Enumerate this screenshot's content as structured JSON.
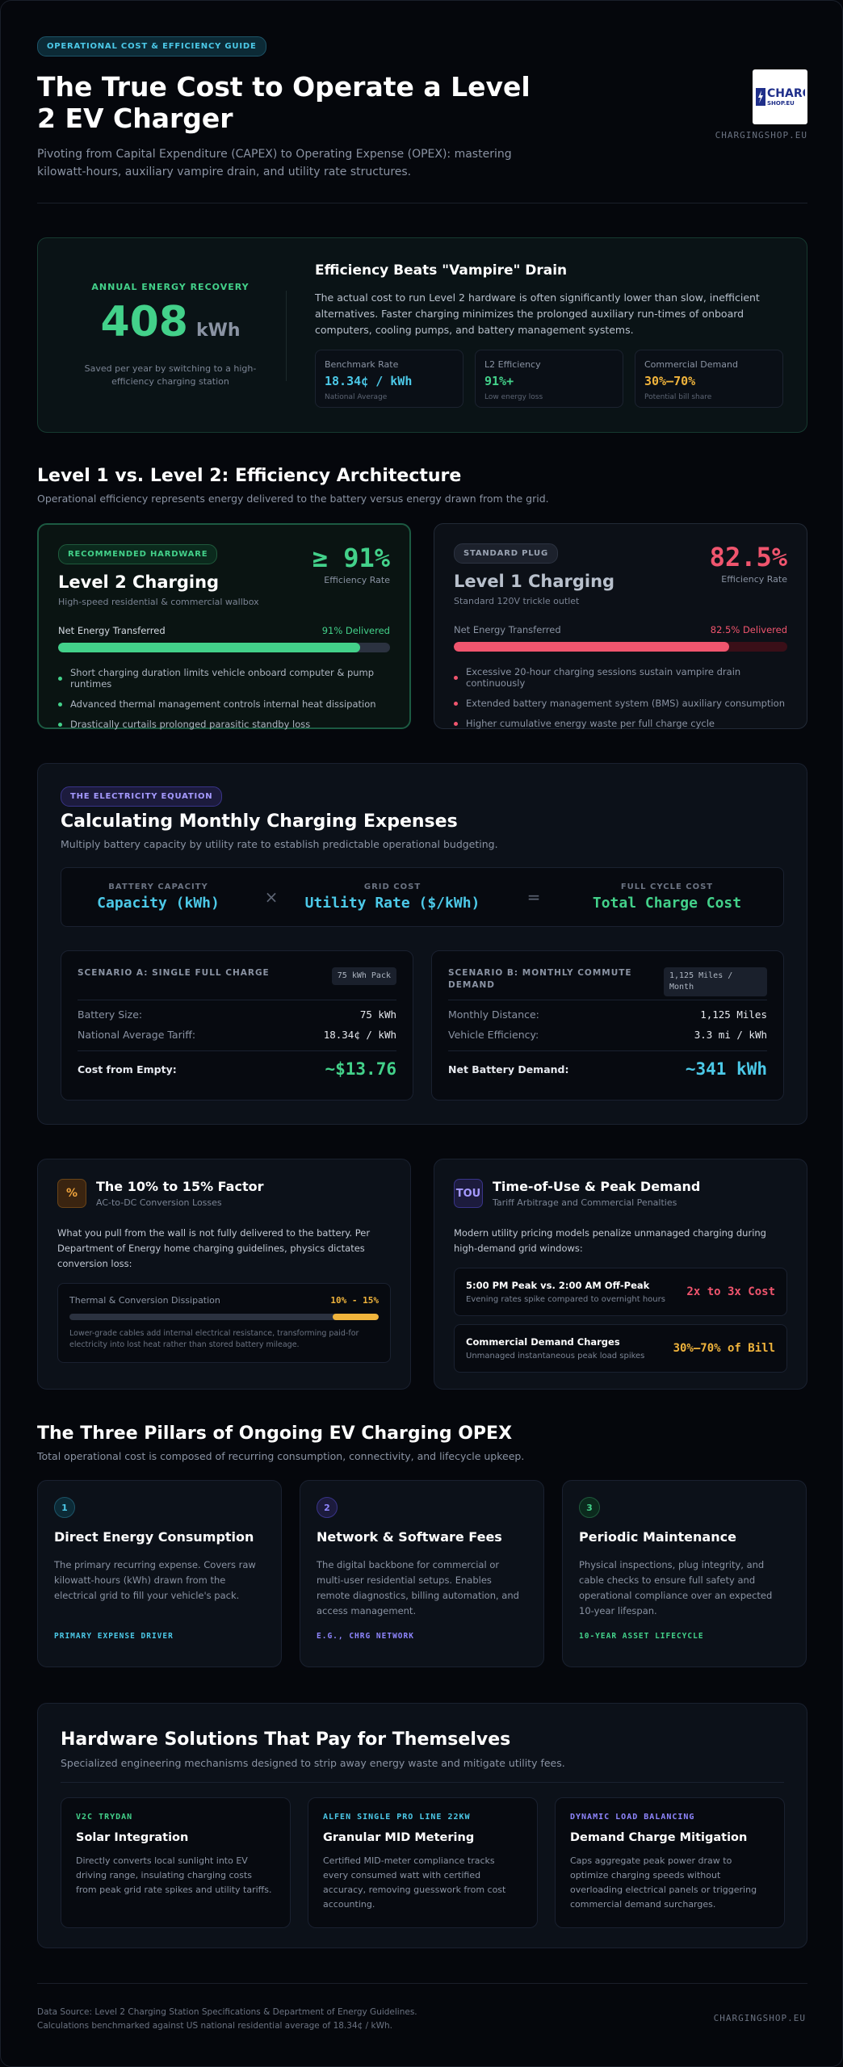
{
  "header": {
    "badge": "OPERATIONAL COST & EFFICIENCY GUIDE",
    "title": "The True Cost to Operate a Level 2 EV Charger",
    "subtitle": "Pivoting from Capital Expenditure (CAPEX) to Operating Expense (OPEX): mastering kilowatt-hours, auxiliary vampire drain, and utility rate structures.",
    "logo_label": "CHARG",
    "logo_sub": "SHOP.EU",
    "brand": "CHARGINGSHOP.EU"
  },
  "hero": {
    "label": "ANNUAL ENERGY RECOVERY",
    "value": "408",
    "unit": "kWh",
    "caption": "Saved per year by switching to a high-efficiency charging station",
    "title": "Efficiency Beats \"Vampire\" Drain",
    "text": "The actual cost to run Level 2 hardware is often significantly lower than slow, inefficient alternatives. Faster charging minimizes the prolonged auxiliary run-times of onboard computers, cooling pumps, and battery management systems.",
    "stats": [
      {
        "label": "Benchmark Rate",
        "value": "18.34¢ / kWh",
        "note": "National Average",
        "color": "#4cc9e8"
      },
      {
        "label": "L2 Efficiency",
        "value": "91%+",
        "note": "Low energy loss",
        "color": "#43d18a"
      },
      {
        "label": "Commercial Demand",
        "value": "30%–70%",
        "note": "Potential bill share",
        "color": "#f0b43c"
      }
    ]
  },
  "levels": {
    "title": "Level 1 vs. Level 2: Efficiency Architecture",
    "subtitle": "Operational efficiency represents energy delivered to the battery versus energy drawn from the grid.",
    "l2": {
      "badge": "RECOMMENDED HARDWARE",
      "name": "Level 2 Charging",
      "desc": "High-speed residential & commercial wallbox",
      "big": "≥ 91%",
      "big_caption": "Efficiency Rate",
      "row_label": "Net Energy Transferred",
      "row_value": "91% Delivered",
      "fill": 0.91,
      "bullets": [
        "Short charging duration limits vehicle onboard computer & pump runtimes",
        "Advanced thermal management controls internal heat dissipation",
        "Drastically curtails prolonged parasitic standby loss"
      ]
    },
    "l1": {
      "badge": "STANDARD PLUG",
      "name": "Level 1 Charging",
      "desc": "Standard 120V trickle outlet",
      "big": "82.5%",
      "big_caption": "Efficiency Rate",
      "row_label": "Net Energy Transferred",
      "row_value": "82.5% Delivered",
      "fill": 0.825,
      "bullets": [
        "Excessive 20-hour charging sessions sustain vampire drain continuously",
        "Extended battery management system (BMS) auxiliary consumption",
        "Higher cumulative energy waste per full charge cycle"
      ]
    }
  },
  "equation": {
    "badge": "THE ELECTRICITY EQUATION",
    "title": "Calculating Monthly Charging Expenses",
    "subtitle": "Multiply battery capacity by utility rate to establish predictable operational budgeting.",
    "terms": [
      {
        "label": "BATTERY CAPACITY",
        "value": "Capacity (kWh)",
        "color": "#4cc9e8"
      },
      {
        "label": "GRID COST",
        "value": "Utility Rate ($/kWh)",
        "color": "#4cc9e8"
      },
      {
        "label": "FULL CYCLE COST",
        "value": "Total Charge Cost",
        "color": "#43d18a"
      }
    ],
    "op_times": "×",
    "op_equals": "=",
    "scenario_a": {
      "title": "SCENARIO A: SINGLE FULL CHARGE",
      "tag": "75 kWh Pack",
      "rows": [
        {
          "k": "Battery Size:",
          "v": "75 kWh"
        },
        {
          "k": "National Average Tariff:",
          "v": "18.34¢ / kWh"
        }
      ],
      "total_label": "Cost from Empty:",
      "total_value": "~$13.76"
    },
    "scenario_b": {
      "title": "SCENARIO B: MONTHLY COMMUTE DEMAND",
      "tag": "1,125 Miles / Month",
      "rows": [
        {
          "k": "Monthly Distance:",
          "v": "1,125 Miles"
        },
        {
          "k": "Vehicle Efficiency:",
          "v": "3.3 mi / kWh"
        }
      ],
      "total_label": "Net Battery Demand:",
      "total_value": "~341 kWh"
    }
  },
  "factor": {
    "icon": "%",
    "title": "The 10% to 15% Factor",
    "subtitle": "AC-to-DC Conversion Losses",
    "text": "What you pull from the wall is not fully delivered to the battery. Per Department of Energy home charging guidelines, physics dictates conversion loss:",
    "bar_label": "Thermal & Conversion Dissipation",
    "bar_value": "10% - 15%",
    "bar_from": 0.85,
    "bar_to": 1.0,
    "caption": "Lower-grade cables add internal electrical resistance, transforming paid-for electricity into lost heat rather than stored battery mileage."
  },
  "tou": {
    "icon": "TOU",
    "title": "Time-of-Use & Peak Demand",
    "subtitle": "Tariff Arbitrage and Commercial Penalties",
    "text": "Modern utility pricing models penalize unmanaged charging during high-demand grid windows:",
    "items": [
      {
        "title": "5:00 PM Peak vs. 2:00 AM Off-Peak",
        "sub": "Evening rates spike compared to overnight hours",
        "value": "2x to 3x Cost",
        "color": "#f0556e"
      },
      {
        "title": "Commercial Demand Charges",
        "sub": "Unmanaged instantaneous peak load spikes",
        "value": "30%–70% of Bill",
        "color": "#f0b43c"
      }
    ]
  },
  "pillars": {
    "title": "The Three Pillars of Ongoing EV Charging OPEX",
    "subtitle": "Total operational cost is composed of recurring consumption, connectivity, and lifecycle upkeep.",
    "items": [
      {
        "num": "1",
        "title": "Direct Energy Consumption",
        "desc": "The primary recurring expense. Covers raw kilowatt-hours (kWh) drawn from the electrical grid to fill your vehicle's pack.",
        "foot": "PRIMARY EXPENSE DRIVER",
        "color": "#4cc9e8",
        "bg": "#0c2a36",
        "border": "#1d5468"
      },
      {
        "num": "2",
        "title": "Network & Software Fees",
        "desc": "The digital backbone for commercial or multi-user residential setups. Enables remote diagnostics, billing automation, and access management.",
        "foot": "E.G., CHRG NETWORK",
        "color": "#8f86ff",
        "bg": "#1c1b3d",
        "border": "#393489"
      },
      {
        "num": "3",
        "title": "Periodic Maintenance",
        "desc": "Physical inspections, plug integrity, and cable checks to ensure full safety and operational compliance over an expected 10-year lifespan.",
        "foot": "10-YEAR ASSET LIFECYCLE",
        "color": "#43d18a",
        "bg": "#0b2a1d",
        "border": "#1f5a3c"
      }
    ]
  },
  "hardware": {
    "title": "Hardware Solutions That Pay for Themselves",
    "subtitle": "Specialized engineering mechanisms designed to strip away energy waste and mitigate utility fees.",
    "items": [
      {
        "kicker": "V2C TRYDAN",
        "title": "Solar Integration",
        "desc": "Directly converts local sunlight into EV driving range, insulating charging costs from peak grid rate spikes and utility tariffs.",
        "color": "#43d18a"
      },
      {
        "kicker": "ALFEN SINGLE PRO LINE 22KW",
        "title": "Granular MID Metering",
        "desc": "Certified MID-meter compliance tracks every consumed watt with certified accuracy, removing guesswork from cost accounting.",
        "color": "#4cc9e8"
      },
      {
        "kicker": "DYNAMIC LOAD BALANCING",
        "title": "Demand Charge Mitigation",
        "desc": "Caps aggregate peak power draw to optimize charging speeds without overloading electrical panels or triggering commercial demand surcharges.",
        "color": "#8f86ff"
      }
    ]
  },
  "footer": {
    "line1": "Data Source: Level 2 Charging Station Specifications & Department of Energy Guidelines.",
    "line2": "Calculations benchmarked against US national residential average of 18.34¢ / kWh.",
    "brand": "CHARGINGSHOP.EU"
  }
}
